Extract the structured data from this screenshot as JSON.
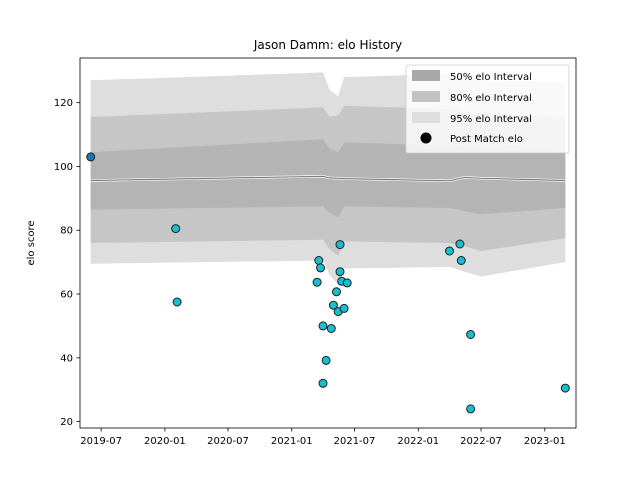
{
  "chart_data": {
    "type": "scatter",
    "title": "Jason Damm: elo History",
    "xlabel": "",
    "ylabel": "elo score",
    "xlim": [
      "2019-05-01",
      "2023-04-01"
    ],
    "ylim": [
      18,
      134
    ],
    "x_ticks": [
      "2019-07",
      "2020-01",
      "2020-07",
      "2021-01",
      "2021-07",
      "2022-01",
      "2022-07",
      "2023-01"
    ],
    "y_ticks": [
      20,
      40,
      60,
      80,
      100,
      120
    ],
    "grid": false,
    "legend": {
      "placement": "top-right",
      "entries": [
        "50% elo Interval",
        "80% elo Interval",
        "95% elo Interval",
        "Post Match elo"
      ]
    },
    "colors": {
      "band_50": "#a9a9a9",
      "band_80": "#c2c2c2",
      "band_95": "#dedede",
      "mean_line": "#7f7f7f",
      "point_fill": "#17becf",
      "point_edge": "#1f1f1f",
      "first_point_fill": "#1f77b4"
    },
    "bands": [
      {
        "date": "2019-06-01",
        "mean": 95.6,
        "lo50": 86.5,
        "hi50": 104.5,
        "lo80": 76.0,
        "hi80": 115.5,
        "lo95": 69.5,
        "hi95": 127.0
      },
      {
        "date": "2021-04-01",
        "mean": 96.9,
        "lo50": 87.5,
        "hi50": 108.5,
        "lo80": 77.0,
        "hi80": 118.5,
        "lo95": 70.5,
        "hi95": 129.5
      },
      {
        "date": "2021-04-20",
        "mean": 96.4,
        "lo50": 85.5,
        "hi50": 105.5,
        "lo80": 74.0,
        "hi80": 115.5,
        "lo95": 66.0,
        "hi95": 124.0
      },
      {
        "date": "2021-05-15",
        "mean": 96.3,
        "lo50": 84.0,
        "hi50": 104.5,
        "lo80": 72.0,
        "hi80": 116.0,
        "lo95": 63.0,
        "hi95": 122.0
      },
      {
        "date": "2021-06-01",
        "mean": 96.2,
        "lo50": 87.5,
        "hi50": 107.5,
        "lo80": 76.5,
        "hi80": 119.0,
        "lo95": 68.0,
        "hi95": 128.0
      },
      {
        "date": "2022-04-01",
        "mean": 95.5,
        "lo50": 87.0,
        "hi50": 106.5,
        "lo80": 76.0,
        "hi80": 118.0,
        "lo95": 68.5,
        "hi95": 129.0
      },
      {
        "date": "2022-05-15",
        "mean": 96.6,
        "lo50": 86.0,
        "hi50": 106.0,
        "lo80": 75.0,
        "hi80": 117.0,
        "lo95": 67.0,
        "hi95": 127.0
      },
      {
        "date": "2022-07-01",
        "mean": 96.3,
        "lo50": 85.0,
        "hi50": 105.5,
        "lo80": 73.5,
        "hi80": 117.0,
        "lo95": 65.5,
        "hi95": 127.0
      },
      {
        "date": "2023-03-01",
        "mean": 95.6,
        "lo50": 87.0,
        "hi50": 104.5,
        "lo80": 77.5,
        "hi80": 115.0,
        "lo95": 70.0,
        "hi95": 126.5
      }
    ],
    "points": [
      {
        "date": "2019-06-01",
        "elo": 103.0
      },
      {
        "date": "2020-02-01",
        "elo": 80.5
      },
      {
        "date": "2020-02-05",
        "elo": 57.5
      },
      {
        "date": "2021-03-15",
        "elo": 63.7
      },
      {
        "date": "2021-03-20",
        "elo": 70.5
      },
      {
        "date": "2021-03-25",
        "elo": 68.2
      },
      {
        "date": "2021-04-01",
        "elo": 50.0
      },
      {
        "date": "2021-04-01",
        "elo": 32.0
      },
      {
        "date": "2021-04-10",
        "elo": 39.2
      },
      {
        "date": "2021-04-25",
        "elo": 49.2
      },
      {
        "date": "2021-05-01",
        "elo": 56.5
      },
      {
        "date": "2021-05-10",
        "elo": 60.7
      },
      {
        "date": "2021-05-15",
        "elo": 54.5
      },
      {
        "date": "2021-05-20",
        "elo": 75.5
      },
      {
        "date": "2021-05-20",
        "elo": 67.0
      },
      {
        "date": "2021-05-25",
        "elo": 64.0
      },
      {
        "date": "2021-06-01",
        "elo": 55.5
      },
      {
        "date": "2021-06-10",
        "elo": 63.5
      },
      {
        "date": "2022-04-01",
        "elo": 73.5
      },
      {
        "date": "2022-05-01",
        "elo": 75.7
      },
      {
        "date": "2022-05-05",
        "elo": 70.5
      },
      {
        "date": "2022-06-01",
        "elo": 47.3
      },
      {
        "date": "2022-06-01",
        "elo": 24.0
      },
      {
        "date": "2023-03-01",
        "elo": 30.5
      }
    ]
  }
}
